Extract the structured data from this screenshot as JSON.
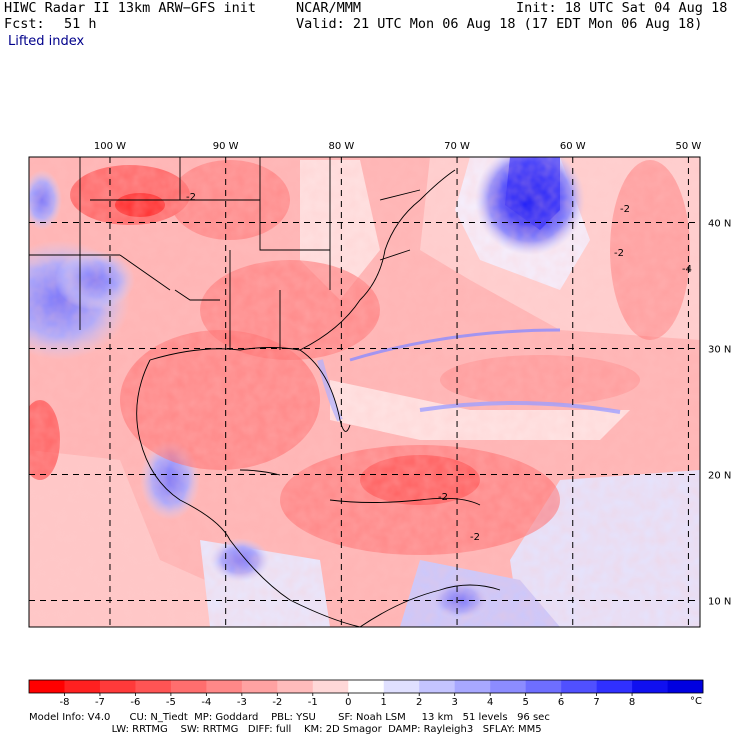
{
  "header": {
    "title_left": "HIWC Radar II 13km ARW−GFS init",
    "center": "NCAR/MMM",
    "init": "Init: 18 UTC Sat 04 Aug 18",
    "fcst_label": "Fcst:",
    "fcst_value": "51 h",
    "valid": "Valid: 21 UTC Mon 06 Aug 18 (17 EDT Mon 06 Aug 18)",
    "field": "Lifted index"
  },
  "map": {
    "lon_labels": [
      "100 W",
      "90 W",
      "80 W",
      "70 W",
      "60 W",
      "50 W"
    ],
    "lat_labels": [
      "40 N",
      "30 N",
      "20 N",
      "10 N"
    ],
    "lon_range": [
      -107.0,
      -49.0
    ],
    "lat_range": [
      7.9,
      45.2
    ],
    "grid_lons": [
      -100,
      -90,
      -80,
      -70,
      -60,
      -50
    ],
    "grid_lats": [
      40,
      30,
      20,
      10
    ],
    "contour_labels": [
      "-2",
      "-2",
      "-4",
      "-2",
      "-2",
      "-2"
    ]
  },
  "colorbar": {
    "tick_labels": [
      "-8",
      "-7",
      "-6",
      "-5",
      "-4",
      "-3",
      "-2",
      "-1",
      "0",
      "1",
      "2",
      "3",
      "4",
      "5",
      "6",
      "7",
      "8"
    ],
    "unit": "°C",
    "colors": [
      "#ff0000",
      "#ff2020",
      "#ff3a3a",
      "#ff5454",
      "#ff6e6e",
      "#ff8888",
      "#ffa2a2",
      "#ffbcbc",
      "#ffd8d8",
      "#ffffff",
      "#e0e0ff",
      "#c4c4ff",
      "#a8a8ff",
      "#8c8cff",
      "#6e6eff",
      "#5050ff",
      "#3030ff",
      "#1010f0",
      "#0000e0"
    ]
  },
  "footer": {
    "line1": "Model Info: V4.0      CU: N_Tiedt  MP: Goddard    PBL: YSU       SF: Noah LSM     13 km   51 levels   96 sec",
    "line2": "                          LW: RRTMG    SW: RRTMG   DIFF: full    KM: 2D Smagor  DAMP: Rayleigh3   SFLAY: MM5"
  }
}
